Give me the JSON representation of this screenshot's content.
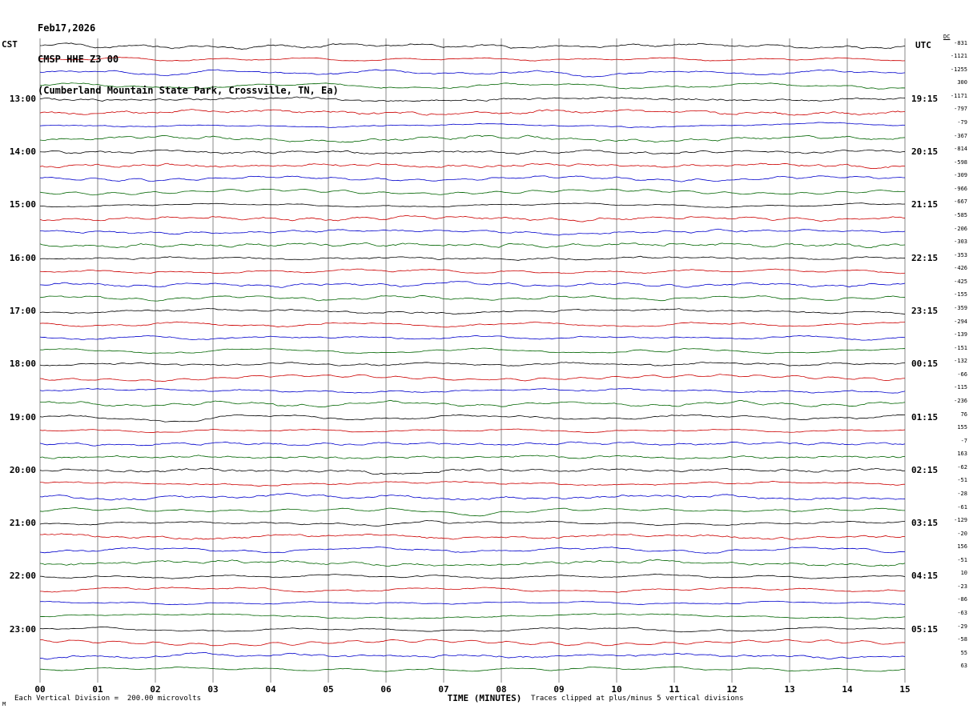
{
  "header": {
    "date": "Feb17,2026",
    "station": "CMSP HHE Z3 00",
    "location": "(Cumberland Mountain State Park, Crossville, TN, Ea)"
  },
  "footer": {
    "scale_note": "Each Vertical Division =  200.00 microvolts",
    "clip_note": "Traces clipped at plus/minus 5 vertical divisions",
    "corner_mark": "M"
  },
  "chart_data": {
    "type": "line",
    "subtype": "seismogram_helicorder",
    "xlabel": "TIME (MINUTES)",
    "x_ticks": [
      "00",
      "01",
      "02",
      "03",
      "04",
      "05",
      "06",
      "07",
      "08",
      "09",
      "10",
      "11",
      "12",
      "13",
      "14",
      "15"
    ],
    "x_range_minutes": [
      0,
      15
    ],
    "rows": 48,
    "traces_per_hour": 4,
    "trace_color_cycle": [
      "#000000",
      "#cc0000",
      "#0000cc",
      "#006400"
    ],
    "grid": "vertical line at each minute",
    "legend_position": "none",
    "left_axis": {
      "label": "CST",
      "hour_labels": [
        "13:00",
        "14:00",
        "15:00",
        "16:00",
        "17:00",
        "18:00",
        "19:00",
        "20:00",
        "21:00",
        "22:00",
        "23:00"
      ],
      "first_label_row": 4,
      "row_step": 4
    },
    "right_axis": {
      "label": "UTC",
      "hour_labels": [
        "19:15",
        "20:15",
        "21:15",
        "22:15",
        "23:15",
        "00:15",
        "01:15",
        "02:15",
        "03:15",
        "04:15",
        "05:15"
      ],
      "first_label_row": 4,
      "row_step": 4
    },
    "dc_offsets": {
      "header": "DC",
      "values": [
        -831,
        -1121,
        -1255,
        300,
        -1171,
        -797,
        -79,
        -367,
        -814,
        -598,
        -309,
        -966,
        -667,
        -585,
        -206,
        -303,
        -353,
        -426,
        -425,
        -155,
        -359,
        -294,
        -139,
        -151,
        -132,
        -66,
        -115,
        -236,
        76,
        155,
        -7,
        163,
        -62,
        -51,
        -28,
        -61,
        -129,
        -20,
        156,
        -51,
        10,
        -23,
        -86,
        -63,
        -29,
        -58,
        55,
        63
      ]
    },
    "waveform": "continuous ambient seismic noise, 15 minutes per trace row, clipped at plus/minus 5 vertical divisions"
  }
}
